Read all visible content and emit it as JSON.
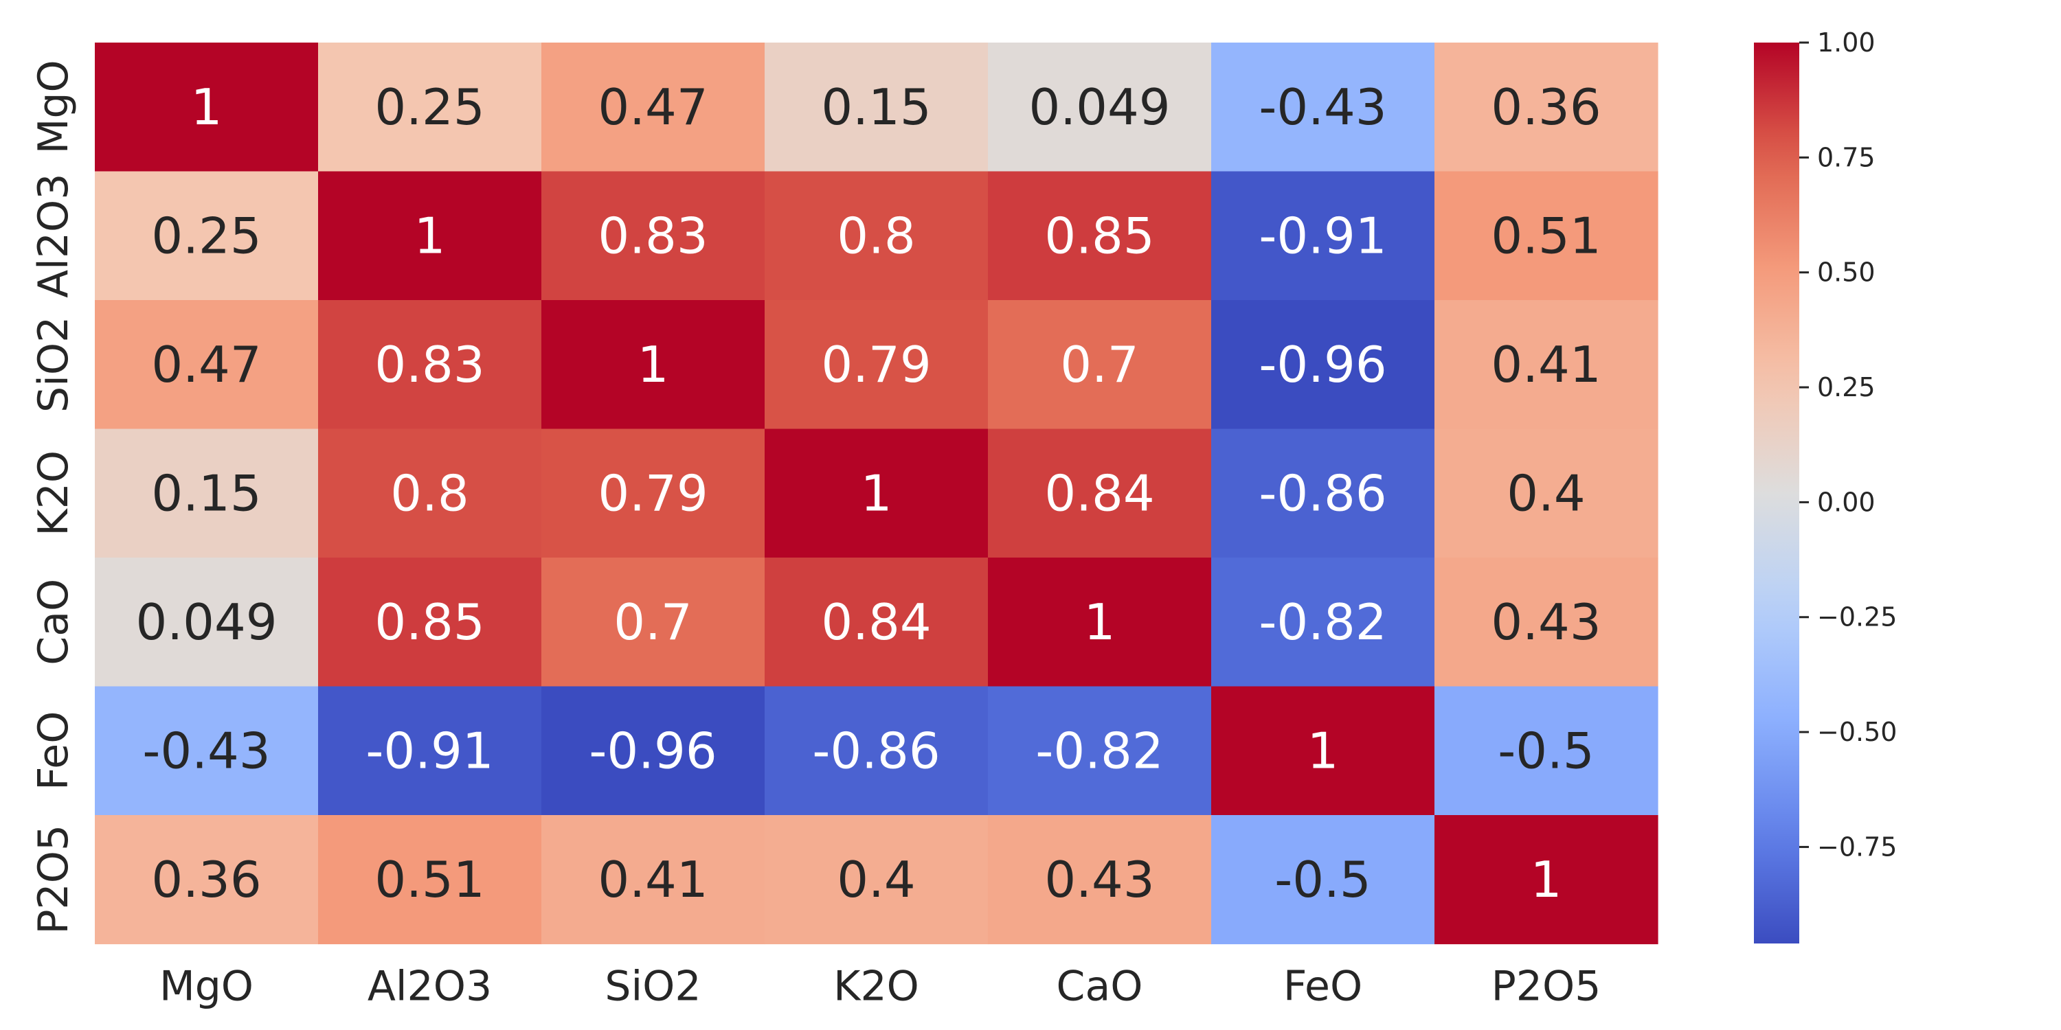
{
  "chart_data": {
    "type": "heatmap",
    "title": "",
    "xlabel": "",
    "ylabel": "",
    "colormap": "coolwarm",
    "color_low": "#3b4cc0",
    "color_mid": "#dddddd",
    "color_high": "#b40426",
    "x_categories": [
      "MgO",
      "Al2O3",
      "SiO2",
      "K2O",
      "CaO",
      "FeO",
      "P2O5"
    ],
    "y_categories": [
      "MgO",
      "Al2O3",
      "SiO2",
      "K2O",
      "CaO",
      "FeO",
      "P2O5"
    ],
    "values": [
      [
        1,
        0.25,
        0.47,
        0.15,
        0.049,
        -0.43,
        0.36
      ],
      [
        0.25,
        1,
        0.83,
        0.8,
        0.85,
        -0.91,
        0.51
      ],
      [
        0.47,
        0.83,
        1,
        0.79,
        0.7,
        -0.96,
        0.41
      ],
      [
        0.15,
        0.8,
        0.79,
        1,
        0.84,
        -0.86,
        0.4
      ],
      [
        0.049,
        0.85,
        0.7,
        0.84,
        1,
        -0.82,
        0.43
      ],
      [
        -0.43,
        -0.91,
        -0.96,
        -0.86,
        -0.82,
        1,
        -0.5
      ],
      [
        0.36,
        0.51,
        0.41,
        0.4,
        0.43,
        -0.5,
        1
      ]
    ],
    "cell_labels": [
      [
        "1",
        "0.25",
        "0.47",
        "0.15",
        "0.049",
        "-0.43",
        "0.36"
      ],
      [
        "0.25",
        "1",
        "0.83",
        "0.8",
        "0.85",
        "-0.91",
        "0.51"
      ],
      [
        "0.47",
        "0.83",
        "1",
        "0.79",
        "0.7",
        "-0.96",
        "0.41"
      ],
      [
        "0.15",
        "0.8",
        "0.79",
        "1",
        "0.84",
        "-0.86",
        "0.4"
      ],
      [
        "0.049",
        "0.85",
        "0.7",
        "0.84",
        "1",
        "-0.82",
        "0.43"
      ],
      [
        "-0.43",
        "-0.91",
        "-0.96",
        "-0.86",
        "-0.82",
        "1",
        "-0.5"
      ],
      [
        "0.36",
        "0.51",
        "0.41",
        "0.4",
        "0.43",
        "-0.5",
        "1"
      ]
    ],
    "colorbar": {
      "vmin": -0.96,
      "vmax": 1.0,
      "ticks": [
        1.0,
        0.75,
        0.5,
        0.25,
        0.0,
        -0.25,
        -0.5,
        -0.75
      ],
      "tick_labels": [
        "1.00",
        "0.75",
        "0.50",
        "0.25",
        "0.00",
        "−0.25",
        "−0.50",
        "−0.75"
      ],
      "position": "right"
    },
    "grid": false
  }
}
